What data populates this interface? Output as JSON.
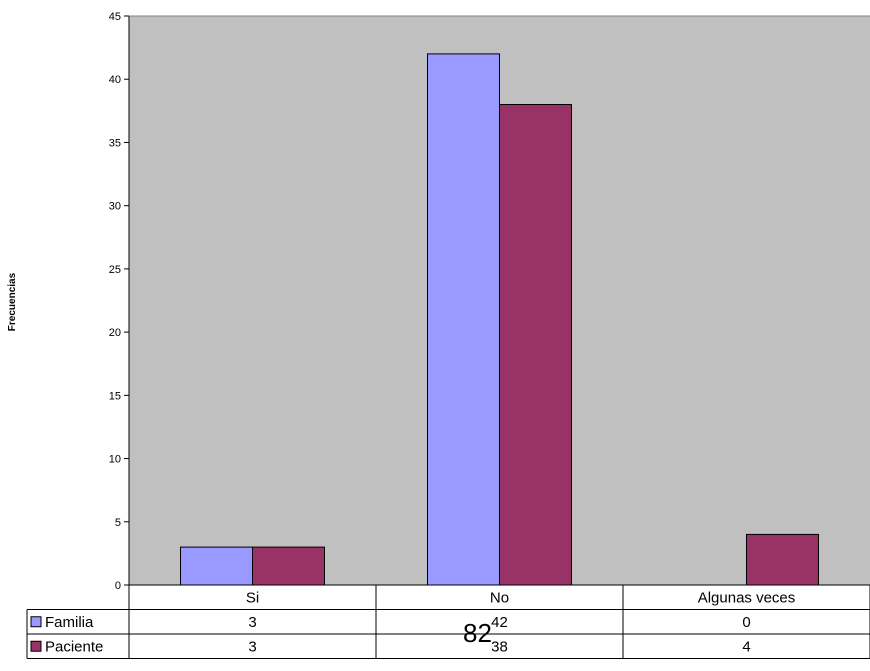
{
  "chart_data": {
    "type": "bar",
    "title": "",
    "xlabel": "",
    "ylabel": "Frecuencias",
    "categories": [
      "Si",
      "No",
      "Algunas veces"
    ],
    "series": [
      {
        "name": "Familia",
        "values": [
          3,
          42,
          0
        ],
        "color": "#9999ff"
      },
      {
        "name": "Paciente",
        "values": [
          3,
          38,
          4
        ],
        "color": "#993366"
      }
    ],
    "ylim": [
      0,
      45
    ],
    "yticks": [
      0,
      5,
      10,
      15,
      20,
      25,
      30,
      35,
      40,
      45
    ],
    "grid": false,
    "plot_background": "#c0c0c0",
    "legend": "data-table"
  },
  "page_number": "82"
}
